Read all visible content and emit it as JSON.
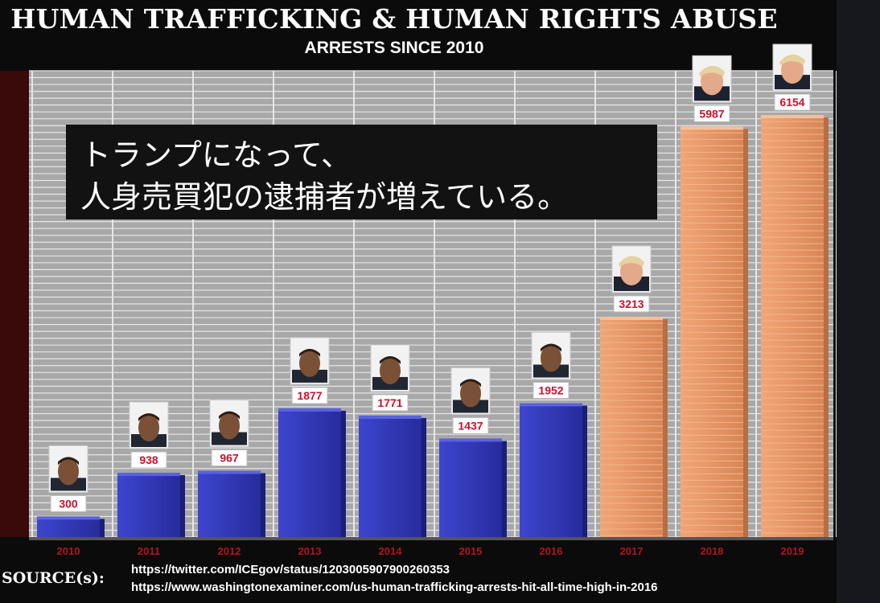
{
  "title": "HUMAN TRAFFICKING & HUMAN RIGHTS ABUSE",
  "subtitle": "ARRESTS SINCE 2010",
  "overlay_text": [
    "トランプになって、",
    "人身売買犯の逮捕者が増えている。"
  ],
  "source": {
    "label": "SOURCE(s):",
    "urls": [
      "https://twitter.com/ICEgov/status/1203005907900260353",
      "https://www.washingtonexaminer.com/us-human-trafficking-arrests-hit-all-time-high-in-2016"
    ]
  },
  "colors": {
    "obama_bar": "#2f36b8",
    "trump_bar": "#e89a66",
    "plot_bg": "#a8a8a8",
    "value_label": "#c8102e",
    "year_label": "#b3141e"
  },
  "chart_data": {
    "type": "bar",
    "title": "HUMAN TRAFFICKING & HUMAN RIGHTS ABUSE",
    "subtitle": "ARRESTS SINCE 2010",
    "categories": [
      "2010",
      "2011",
      "2012",
      "2013",
      "2014",
      "2015",
      "2016",
      "2017",
      "2018",
      "2019"
    ],
    "values": [
      300,
      938,
      967,
      1877,
      1771,
      1437,
      1952,
      3213,
      5987,
      6154
    ],
    "bar_groups": [
      "obama",
      "obama",
      "obama",
      "obama",
      "obama",
      "obama",
      "obama",
      "trump",
      "trump",
      "trump"
    ],
    "photo_icons": [
      "obama-photo",
      "obama-photo",
      "obama-photo",
      "obama-photo",
      "obama-photo",
      "obama-photo",
      "obama-photo",
      "trump-photo",
      "trump-photo",
      "trump-photo"
    ],
    "ylim": [
      0,
      6800
    ],
    "grid": true,
    "xlabel": "",
    "ylabel": ""
  }
}
